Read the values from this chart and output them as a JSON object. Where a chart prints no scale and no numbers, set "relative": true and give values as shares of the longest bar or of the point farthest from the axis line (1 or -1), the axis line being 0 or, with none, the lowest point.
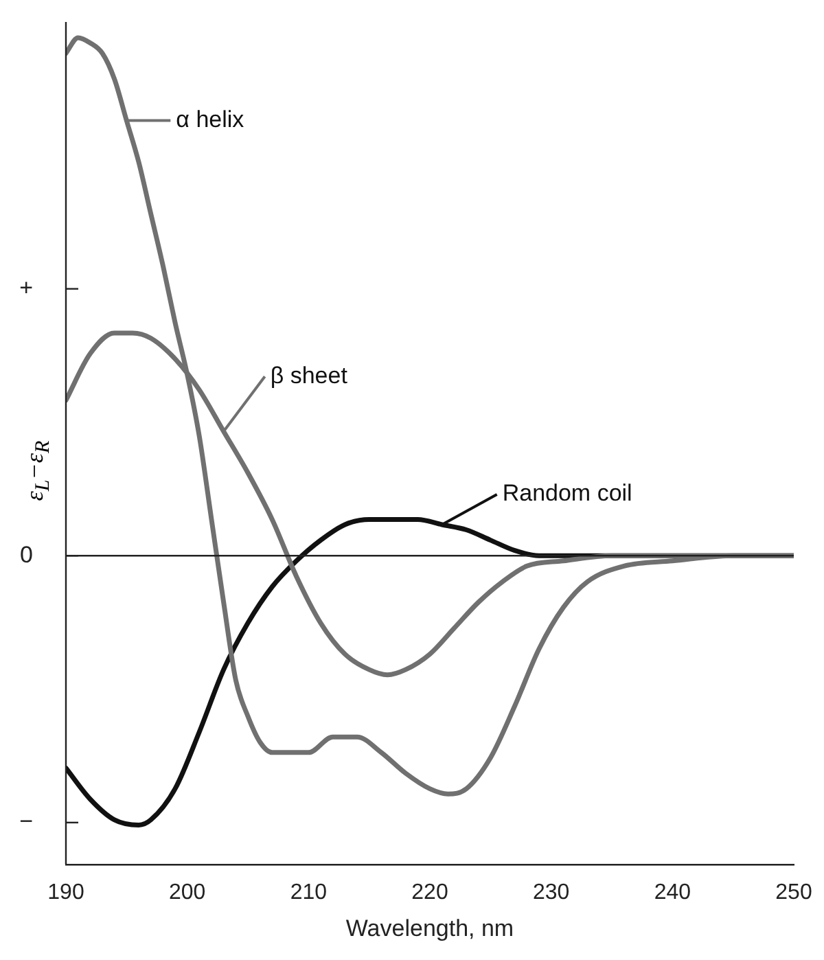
{
  "chart_data": {
    "type": "line",
    "relative": true,
    "xlabel": "Wavelength, nm",
    "ylabel": "ε$_{L}$−ε$_{R}$",
    "xlim": [
      190,
      250
    ],
    "xticks": [
      190,
      200,
      210,
      220,
      230,
      240,
      250
    ],
    "grid": false,
    "legend": "top left",
    "marker": "none",
    "line_style": "solid",
    "annotations": [
      "+",
      "0",
      "−"
    ],
    "series": [
      {
        "name": "α helix",
        "color": "#707070",
        "x": [
          190,
          191,
          192,
          193,
          194,
          195,
          196,
          197,
          198,
          199,
          200,
          201,
          202,
          203,
          204,
          205,
          206,
          207,
          208,
          210,
          212,
          213,
          214,
          216,
          218,
          220,
          221.5,
          223,
          225,
          227,
          229,
          231,
          233,
          236,
          240,
          245,
          250
        ],
        "values": [
          0.97,
          1,
          0.99,
          0.97,
          0.92,
          0.84,
          0.76,
          0.66,
          0.56,
          0.45,
          0.35,
          0.23,
          0.07,
          -0.09,
          -0.24,
          -0.31,
          -0.36,
          -0.38,
          -0.38,
          -0.38,
          -0.35,
          -0.35,
          -0.35,
          -0.38,
          -0.42,
          -0.45,
          -0.46,
          -0.45,
          -0.39,
          -0.29,
          -0.18,
          -0.1,
          -0.05,
          -0.02,
          -0.01,
          0,
          0
        ]
      },
      {
        "name": "β sheet",
        "color": "#707070",
        "x": [
          190,
          192,
          194,
          195.5,
          197,
          199,
          201,
          203,
          205,
          207,
          209,
          211,
          213,
          215,
          216.5,
          218,
          220,
          222,
          224,
          226,
          228,
          231,
          235,
          240,
          250
        ],
        "values": [
          0.3,
          0.39,
          0.43,
          0.43,
          0.42,
          0.38,
          0.32,
          0.24,
          0.16,
          0.07,
          -0.04,
          -0.13,
          -0.19,
          -0.22,
          -0.23,
          -0.22,
          -0.19,
          -0.14,
          -0.09,
          -0.05,
          -0.02,
          -0.01,
          0,
          0,
          0
        ]
      },
      {
        "name": "Random coil",
        "color": "#111111",
        "x": [
          190,
          192,
          194,
          196,
          197,
          199,
          201,
          203,
          205,
          207,
          209,
          211,
          213,
          215,
          217,
          219,
          221,
          223,
          225,
          227,
          229,
          232,
          250
        ],
        "values": [
          -0.41,
          -0.47,
          -0.51,
          -0.52,
          -0.51,
          -0.45,
          -0.34,
          -0.22,
          -0.13,
          -0.06,
          -0.01,
          0.03,
          0.06,
          0.07,
          0.07,
          0.07,
          0.06,
          0.05,
          0.03,
          0.01,
          0,
          0,
          0
        ]
      }
    ]
  }
}
